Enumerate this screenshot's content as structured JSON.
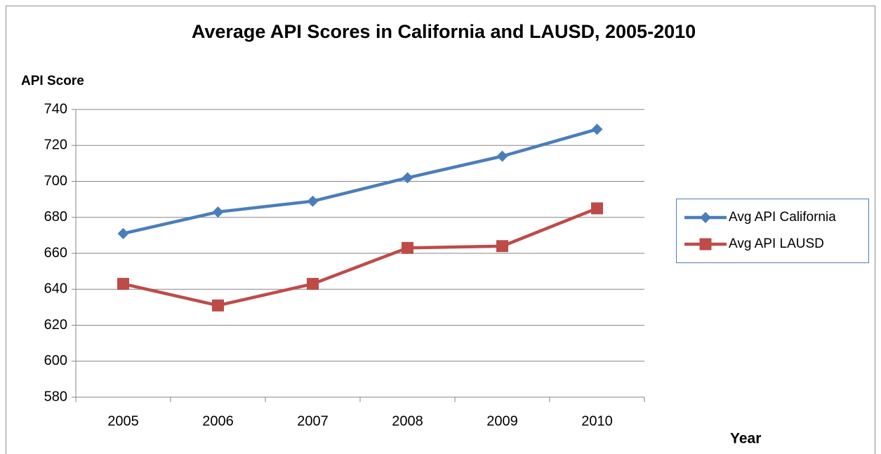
{
  "chart_data": {
    "type": "line",
    "title": "Average API Scores in California and LAUSD, 2005-2010",
    "y_label": "API Score",
    "x_label": "Year",
    "categories": [
      "2005",
      "2006",
      "2007",
      "2008",
      "2009",
      "2010"
    ],
    "series": [
      {
        "name": "Avg API California",
        "color": "#4a7ebb",
        "marker": "diamond",
        "values": [
          671,
          683,
          689,
          702,
          714,
          729
        ]
      },
      {
        "name": "Avg API LAUSD",
        "color": "#be4b48",
        "marker": "square",
        "values": [
          643,
          631,
          643,
          663,
          664,
          685
        ]
      }
    ],
    "ylim": [
      580,
      740
    ],
    "yticks": [
      580,
      600,
      620,
      640,
      660,
      680,
      700,
      720,
      740
    ],
    "grid": true,
    "legend": "right"
  }
}
